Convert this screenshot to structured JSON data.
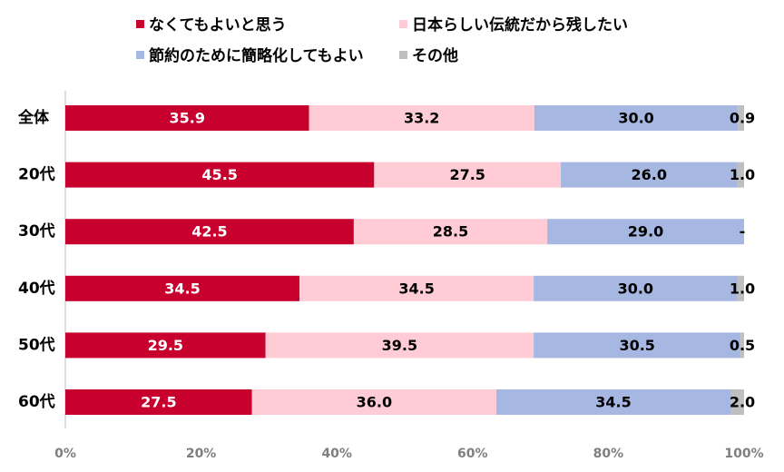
{
  "chart_data": {
    "type": "bar",
    "orientation": "horizontal",
    "stacked": true,
    "categories": [
      "全体",
      "20代",
      "30代",
      "40代",
      "50代",
      "60代"
    ],
    "series": [
      {
        "name": "なくてもよいと思う",
        "color": "#c8002e",
        "label_color": "#ffffff",
        "values": [
          35.9,
          45.5,
          42.5,
          34.5,
          29.5,
          27.5
        ],
        "labels": [
          "35.9",
          "45.5",
          "42.5",
          "34.5",
          "29.5",
          "27.5"
        ]
      },
      {
        "name": "日本らしい伝統だから残したい",
        "color": "#ffccd5",
        "label_color": "#000000",
        "values": [
          33.2,
          27.5,
          28.5,
          34.5,
          39.5,
          36.0
        ],
        "labels": [
          "33.2",
          "27.5",
          "28.5",
          "34.5",
          "39.5",
          "36.0"
        ]
      },
      {
        "name": "節約のために簡略化してもよい",
        "color": "#a6b7e2",
        "label_color": "#000000",
        "values": [
          30.0,
          26.0,
          29.0,
          30.0,
          30.5,
          34.5
        ],
        "labels": [
          "30.0",
          "26.0",
          "29.0",
          "30.0",
          "30.5",
          "34.5"
        ]
      },
      {
        "name": "その他",
        "color": "#bfbfbf",
        "label_color": "#000000",
        "values": [
          0.9,
          1.0,
          0,
          1.0,
          0.5,
          2.0
        ],
        "labels": [
          "0.9",
          "1.0",
          "-",
          "1.0",
          "0.5",
          "2.0"
        ]
      }
    ],
    "xlim": [
      0,
      100
    ],
    "xticks": [
      "0%",
      "20%",
      "40%",
      "60%",
      "80%",
      "100%"
    ],
    "legend_position": "top",
    "grid": false
  }
}
